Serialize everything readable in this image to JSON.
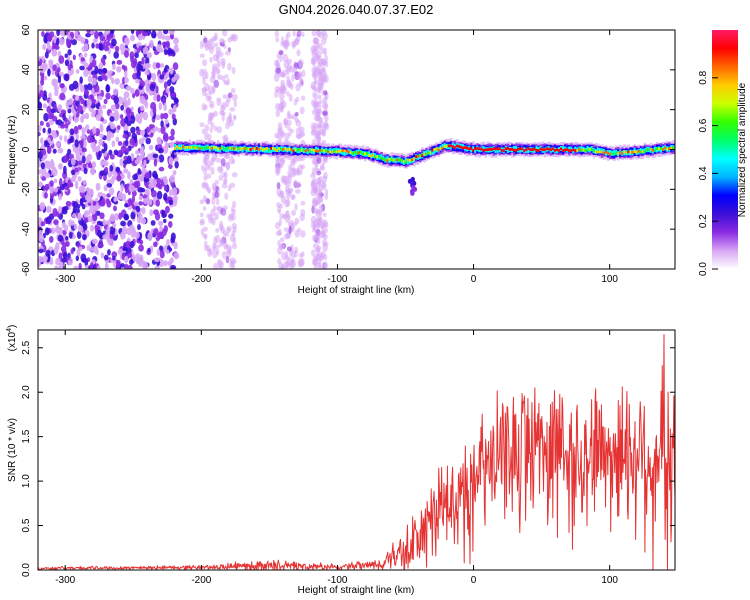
{
  "title": "GN04.2026.040.07.37.E02",
  "chart_data": [
    {
      "type": "heatmap",
      "xlabel": "Height of straight line (km)",
      "ylabel": "Frequency (Hz)",
      "xlim": [
        -320,
        148
      ],
      "ylim": [
        -60,
        60
      ],
      "x_ticks": [
        -300,
        -200,
        -100,
        0,
        100
      ],
      "y_ticks": [
        -60,
        -40,
        -20,
        0,
        20,
        40,
        60
      ],
      "colorbar": {
        "label": "Normalized spectral amplitude",
        "range": [
          0,
          1
        ],
        "ticks": [
          0.0,
          0.2,
          0.4,
          0.6,
          0.8
        ],
        "colors": [
          "#ffffff",
          "#d7a6f5",
          "#8a2be2",
          "#3b0fd6",
          "#0000ff",
          "#00b4ff",
          "#00ffff",
          "#00ff66",
          "#33ff00",
          "#ccff00",
          "#ffcc00",
          "#ff6600",
          "#ff0000",
          "#ff1a66"
        ]
      },
      "ridge_center_hz": [
        {
          "x": -215,
          "y": 1
        },
        {
          "x": -150,
          "y": 0
        },
        {
          "x": -100,
          "y": -1
        },
        {
          "x": -80,
          "y": -2
        },
        {
          "x": -65,
          "y": -5
        },
        {
          "x": -50,
          "y": -6
        },
        {
          "x": -35,
          "y": -2
        },
        {
          "x": -20,
          "y": 2
        },
        {
          "x": 0,
          "y": 0
        },
        {
          "x": 60,
          "y": 0
        },
        {
          "x": 85,
          "y": 0
        },
        {
          "x": 100,
          "y": -2
        },
        {
          "x": 120,
          "y": -1
        },
        {
          "x": 148,
          "y": 1
        }
      ],
      "ridge_peak_segment_km": [
        -20,
        75
      ],
      "noise_bands_km": [
        [
          -320,
          -218
        ],
        [
          -200,
          -175
        ],
        [
          -145,
          -125
        ],
        [
          -118,
          -108
        ]
      ],
      "drip_feature": {
        "x": -45,
        "y_range_hz": [
          -15,
          -22
        ]
      }
    },
    {
      "type": "line",
      "xlabel": "Height of straight line (km)",
      "ylabel": "SNR (10 * v/v)",
      "y_multiplier_label": "(x10",
      "y_multiplier_exp": "4",
      "multiplier_suffix": ")",
      "xlim": [
        -320,
        148
      ],
      "ylim": [
        0,
        2.7
      ],
      "x_ticks": [
        -300,
        -200,
        -100,
        0,
        100
      ],
      "y_ticks": [
        "0.0",
        "0.5",
        "1.0",
        "1.5",
        "2.0",
        "2.5"
      ],
      "series": [
        {
          "color": "#e53333",
          "envelope": [
            {
              "x": -320,
              "base": 0.02,
              "amp": 0.02
            },
            {
              "x": -200,
              "base": 0.03,
              "amp": 0.03
            },
            {
              "x": -150,
              "base": 0.05,
              "amp": 0.08
            },
            {
              "x": -100,
              "base": 0.03,
              "amp": 0.04
            },
            {
              "x": -70,
              "base": 0.06,
              "amp": 0.08
            },
            {
              "x": -50,
              "base": 0.2,
              "amp": 0.3
            },
            {
              "x": -30,
              "base": 0.55,
              "amp": 0.6
            },
            {
              "x": -10,
              "base": 0.9,
              "amp": 0.7
            },
            {
              "x": 10,
              "base": 1.15,
              "amp": 0.8
            },
            {
              "x": 40,
              "base": 1.45,
              "amp": 0.9
            },
            {
              "x": 70,
              "base": 1.4,
              "amp": 0.9
            },
            {
              "x": 100,
              "base": 1.35,
              "amp": 0.9
            },
            {
              "x": 130,
              "base": 1.3,
              "amp": 1.2
            },
            {
              "x": 148,
              "base": 1.2,
              "amp": 1.0
            }
          ],
          "max_value": 2.65,
          "max_at_x": 140
        }
      ]
    }
  ]
}
